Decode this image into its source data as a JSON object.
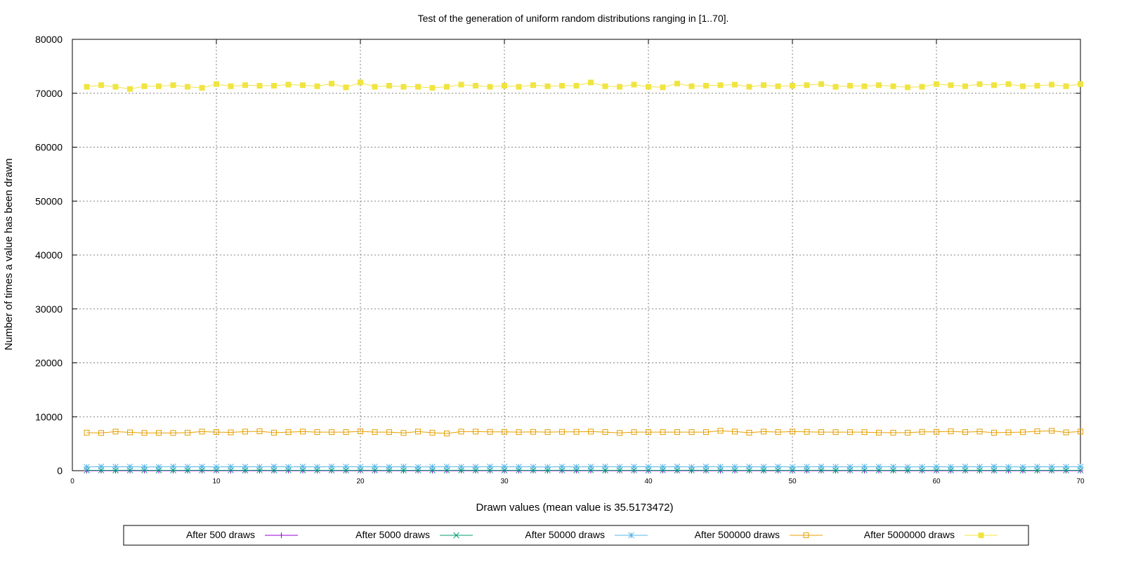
{
  "chart_data": {
    "type": "line",
    "title": "Test of the generation of uniform random distributions ranging in [1..70].",
    "xlabel": "Drawn values (mean value is 35.5173472)",
    "ylabel": "Number of times a value has been drawn",
    "xlim": [
      0,
      70
    ],
    "ylim": [
      0,
      80000
    ],
    "xticks": [
      "0",
      "10",
      "20",
      "30",
      "40",
      "50",
      "60",
      "70"
    ],
    "yticks": [
      "0",
      "10000",
      "20000",
      "30000",
      "40000",
      "50000",
      "60000",
      "70000",
      "80000"
    ],
    "grid": true,
    "legend_position": "bottom",
    "x": [
      1,
      2,
      3,
      4,
      5,
      6,
      7,
      8,
      9,
      10,
      11,
      12,
      13,
      14,
      15,
      16,
      17,
      18,
      19,
      20,
      21,
      22,
      23,
      24,
      25,
      26,
      27,
      28,
      29,
      30,
      31,
      32,
      33,
      34,
      35,
      36,
      37,
      38,
      39,
      40,
      41,
      42,
      43,
      44,
      45,
      46,
      47,
      48,
      49,
      50,
      51,
      52,
      53,
      54,
      55,
      56,
      57,
      58,
      59,
      60,
      61,
      62,
      63,
      64,
      65,
      66,
      67,
      68,
      69,
      70
    ],
    "series": [
      {
        "name": "After 500 draws",
        "color": "#9400d3",
        "marker": "plus",
        "values": [
          7,
          5,
          8,
          6,
          9,
          7,
          8,
          4,
          6,
          10,
          7,
          8,
          6,
          7,
          9,
          5,
          8,
          6,
          7,
          11,
          7,
          6,
          8,
          5,
          7,
          6,
          9,
          7,
          8,
          6,
          7,
          8,
          5,
          7,
          9,
          6,
          7,
          8,
          6,
          7,
          9,
          6,
          8,
          7,
          5,
          8,
          7,
          6,
          9,
          7,
          8,
          6,
          7,
          8,
          5,
          7,
          9,
          6,
          7,
          8,
          6,
          7,
          8,
          5,
          9,
          6,
          7,
          8,
          6,
          7
        ]
      },
      {
        "name": "After 5000 draws",
        "color": "#009e73",
        "marker": "cross",
        "values": [
          70,
          72,
          68,
          75,
          71,
          69,
          73,
          70,
          74,
          72,
          71,
          69,
          75,
          70,
          72,
          68,
          73,
          71,
          70,
          74,
          69,
          72,
          71,
          73,
          70,
          68,
          75,
          71,
          72,
          70,
          69,
          73,
          71,
          74,
          70,
          72,
          68,
          71,
          73,
          70,
          72,
          69,
          74,
          71,
          70,
          72,
          73,
          69,
          71,
          70,
          72,
          74,
          68,
          71,
          73,
          70,
          72,
          69,
          71,
          74,
          70,
          72,
          71,
          69,
          73,
          70,
          72,
          71,
          70,
          73
        ]
      },
      {
        "name": "After 50000 draws",
        "color": "#56b4e9",
        "marker": "star",
        "values": [
          680,
          750,
          720,
          740,
          690,
          700,
          760,
          710,
          730,
          690,
          740,
          720,
          710,
          750,
          700,
          730,
          690,
          760,
          720,
          710,
          740,
          700,
          730,
          690,
          720,
          740,
          710,
          700,
          750,
          730,
          720,
          710,
          690,
          740,
          700,
          730,
          760,
          710,
          720,
          740,
          700,
          730,
          690,
          750,
          720,
          710,
          740,
          700,
          730,
          690,
          720,
          750,
          710,
          700,
          740,
          730,
          720,
          690,
          710,
          740,
          700,
          730,
          720,
          750,
          710,
          690,
          740,
          720,
          700,
          730
        ]
      },
      {
        "name": "After 500000 draws",
        "color": "#e69f00",
        "marker": "square-open",
        "values": [
          7050,
          7000,
          7250,
          7100,
          7000,
          7000,
          7000,
          7050,
          7250,
          7150,
          7100,
          7250,
          7300,
          7050,
          7150,
          7250,
          7150,
          7150,
          7150,
          7300,
          7150,
          7150,
          7000,
          7250,
          7050,
          6900,
          7250,
          7250,
          7200,
          7200,
          7150,
          7200,
          7150,
          7200,
          7200,
          7250,
          7150,
          7000,
          7150,
          7150,
          7150,
          7150,
          7150,
          7150,
          7400,
          7250,
          7050,
          7250,
          7150,
          7250,
          7200,
          7150,
          7150,
          7150,
          7150,
          7050,
          7050,
          7050,
          7200,
          7200,
          7300,
          7150,
          7250,
          7050,
          7100,
          7150,
          7300,
          7400,
          7100,
          7250
        ]
      },
      {
        "name": "After 5000000 draws",
        "color": "#f0e442",
        "marker": "square-filled",
        "values": [
          71200,
          71500,
          71200,
          70800,
          71300,
          71300,
          71500,
          71200,
          71000,
          71700,
          71300,
          71500,
          71400,
          71400,
          71600,
          71500,
          71300,
          71800,
          71100,
          72000,
          71200,
          71400,
          71200,
          71200,
          71000,
          71200,
          71600,
          71400,
          71200,
          71400,
          71200,
          71500,
          71300,
          71400,
          71400,
          72000,
          71300,
          71200,
          71600,
          71200,
          71100,
          71800,
          71300,
          71400,
          71500,
          71600,
          71200,
          71500,
          71300,
          71400,
          71500,
          71700,
          71200,
          71400,
          71300,
          71500,
          71300,
          71100,
          71200,
          71700,
          71500,
          71300,
          71700,
          71500,
          71700,
          71300,
          71400,
          71600,
          71300,
          71700
        ]
      }
    ]
  }
}
